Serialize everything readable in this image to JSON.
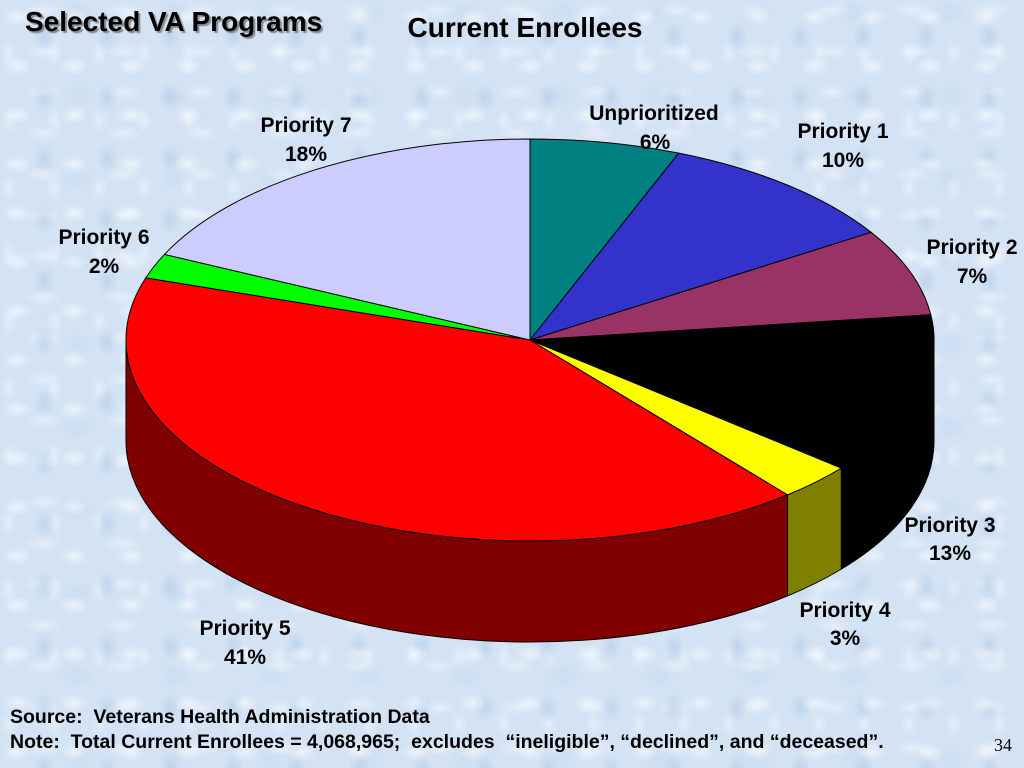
{
  "slide": {
    "title": "Selected VA Programs",
    "source": "Source:  Veterans Health Administration Data",
    "note": "Note:  Total Current Enrollees = 4,068,965;  excludes  “ineligible”, “declined”, and “deceased”.",
    "page_number": "34"
  },
  "chart_data": {
    "type": "pie",
    "three_d": true,
    "title": "Current Enrollees",
    "categories": [
      "Unprioritized",
      "Priority 1",
      "Priority 2",
      "Priority 3",
      "Priority 4",
      "Priority 5",
      "Priority 6",
      "Priority 7"
    ],
    "values": [
      6,
      10,
      7,
      13,
      3,
      41,
      2,
      18
    ],
    "value_labels": [
      "6%",
      "10%",
      "7%",
      "13%",
      "3%",
      "41%",
      "2%",
      "18%"
    ],
    "colors": [
      "#008080",
      "#3333cc",
      "#993366",
      "#000000",
      "#ffff00",
      "#ff0000",
      "#00ff00",
      "#ccccff"
    ]
  }
}
